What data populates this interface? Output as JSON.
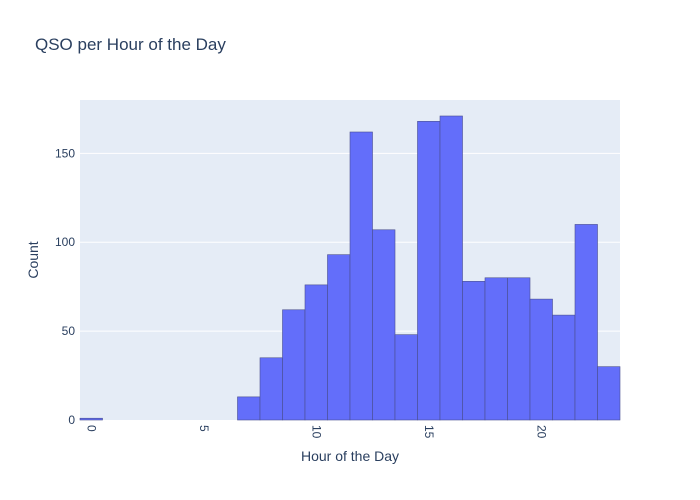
{
  "chart_data": {
    "type": "bar",
    "title": "QSO per Hour of the Day",
    "xlabel": "Hour of the Day",
    "ylabel": "Count",
    "x": [
      0,
      1,
      2,
      3,
      4,
      5,
      6,
      7,
      8,
      9,
      10,
      11,
      12,
      13,
      14,
      15,
      16,
      17,
      18,
      19,
      20,
      21,
      22,
      23
    ],
    "values": [
      1,
      0,
      0,
      0,
      0,
      0,
      0,
      13,
      35,
      62,
      76,
      93,
      162,
      107,
      48,
      168,
      171,
      78,
      80,
      80,
      68,
      59,
      110,
      30
    ],
    "xlim": [
      -0.5,
      23.5
    ],
    "ylim": [
      0,
      180
    ],
    "xticks": [
      0,
      5,
      10,
      15,
      20
    ],
    "yticks": [
      0,
      50,
      100,
      150
    ],
    "xtick_labels": [
      "0",
      "5",
      "10",
      "15",
      "20"
    ],
    "ytick_labels": [
      "0",
      "50",
      "100",
      "150"
    ],
    "grid": true,
    "bar_color": "#636efa",
    "plot_background": "#e5ecf6"
  }
}
